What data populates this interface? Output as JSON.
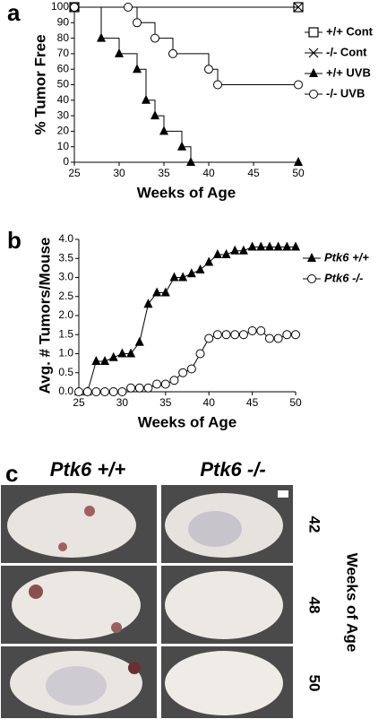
{
  "chart_data": [
    {
      "type": "step",
      "panel": "a",
      "x_label": "Weeks of Age",
      "y_label": "% Tumor Free",
      "xlim": [
        25,
        50
      ],
      "xticks": [
        25,
        30,
        35,
        40,
        45,
        50
      ],
      "ylim": [
        0,
        100
      ],
      "yticks": [
        0,
        10,
        20,
        30,
        40,
        50,
        60,
        70,
        80,
        90,
        100
      ],
      "legend": "right",
      "series": [
        {
          "name": "+/+ Cont",
          "marker": "square",
          "color": "#000000",
          "x": [
            25,
            50
          ],
          "values": [
            100,
            100
          ]
        },
        {
          "name": "-/- Cont",
          "marker": "x",
          "color": "#000000",
          "x": [
            25,
            50
          ],
          "values": [
            100,
            100
          ]
        },
        {
          "name": "+/+ UVB",
          "marker": "triangle",
          "color": "#000000",
          "x": [
            25,
            28,
            30,
            32,
            33,
            34,
            35,
            37,
            38,
            50
          ],
          "values": [
            100,
            80,
            70,
            60,
            40,
            30,
            20,
            10,
            0,
            0
          ]
        },
        {
          "name": "-/- UVB",
          "marker": "circle",
          "color": "#000000",
          "x": [
            25,
            31,
            32,
            34,
            36,
            40,
            41,
            50
          ],
          "values": [
            100,
            100,
            90,
            80,
            70,
            60,
            50,
            50
          ]
        }
      ]
    },
    {
      "type": "line",
      "panel": "b",
      "x_label": "Weeks of Age",
      "y_label": "Avg. # Tumors/Mouse",
      "xlim": [
        25,
        50
      ],
      "xticks": [
        25,
        30,
        35,
        40,
        45,
        50
      ],
      "ylim": [
        0,
        4
      ],
      "yticks": [
        {
          "value": 0,
          "label": "0.0"
        },
        {
          "value": 0.5,
          "label": "0.5"
        },
        {
          "value": 1,
          "label": "1.0"
        },
        {
          "value": 1.5,
          "label": "1.5"
        },
        {
          "value": 2,
          "label": "2.0"
        },
        {
          "value": 2.5,
          "label": "2.5"
        },
        {
          "value": 3,
          "label": "3.0"
        },
        {
          "value": 3.5,
          "label": "3.5"
        },
        {
          "value": 4,
          "label": "4.0"
        }
      ],
      "legend": "right",
      "x": [
        25,
        26,
        27,
        28,
        29,
        30,
        31,
        32,
        33,
        34,
        35,
        36,
        37,
        38,
        39,
        40,
        41,
        42,
        43,
        44,
        45,
        46,
        47,
        48,
        49,
        50
      ],
      "series": [
        {
          "name": "Ptk6 +/+",
          "marker": "triangle",
          "color": "#000000",
          "values": [
            0,
            0,
            0.8,
            0.8,
            0.9,
            1.0,
            1.0,
            1.3,
            2.3,
            2.6,
            2.6,
            3.0,
            3.0,
            3.1,
            3.2,
            3.4,
            3.6,
            3.6,
            3.7,
            3.7,
            3.8,
            3.8,
            3.8,
            3.8,
            3.8,
            3.8
          ]
        },
        {
          "name": "Ptk6 -/-",
          "marker": "circle",
          "color": "#000000",
          "values": [
            0,
            0,
            0,
            0,
            0,
            0,
            0.1,
            0.1,
            0.1,
            0.2,
            0.2,
            0.3,
            0.5,
            0.6,
            1.0,
            1.4,
            1.5,
            1.5,
            1.5,
            1.5,
            1.6,
            1.6,
            1.4,
            1.4,
            1.5,
            1.5
          ]
        }
      ]
    }
  ],
  "photo_panel": {
    "letter": "c",
    "columns": [
      "Ptk6 +/+",
      "Ptk6 -/-"
    ],
    "rows": [
      "42",
      "48",
      "50"
    ],
    "row_axis_label": "Weeks of Age"
  }
}
